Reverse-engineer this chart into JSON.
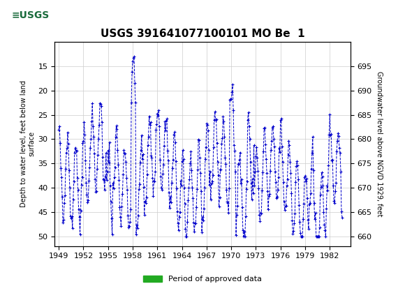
{
  "title": "USGS 391641077100101 MO Be  1",
  "ylabel_left": "Depth to water level, feet below land\nsurface",
  "ylabel_right": "Groundwater level above NGVD 1929, feet",
  "ylim_left": [
    10,
    52
  ],
  "ylim_right": [
    658,
    700
  ],
  "xlim": [
    1948.5,
    1984.5
  ],
  "yticks_left": [
    15,
    20,
    25,
    30,
    35,
    40,
    45,
    50
  ],
  "yticks_right": [
    660,
    665,
    670,
    675,
    680,
    685,
    690,
    695
  ],
  "xticks": [
    1949,
    1952,
    1955,
    1958,
    1961,
    1964,
    1967,
    1970,
    1973,
    1976,
    1979,
    1982
  ],
  "data_color": "#0000CC",
  "line_style": "--",
  "marker": "+",
  "header_color": "#1a6b3c",
  "background_color": "#ffffff",
  "plot_bg_color": "#ffffff",
  "grid_color": "#cccccc",
  "legend_label": "Period of approved data",
  "legend_color": "#22aa22",
  "seed": 42
}
